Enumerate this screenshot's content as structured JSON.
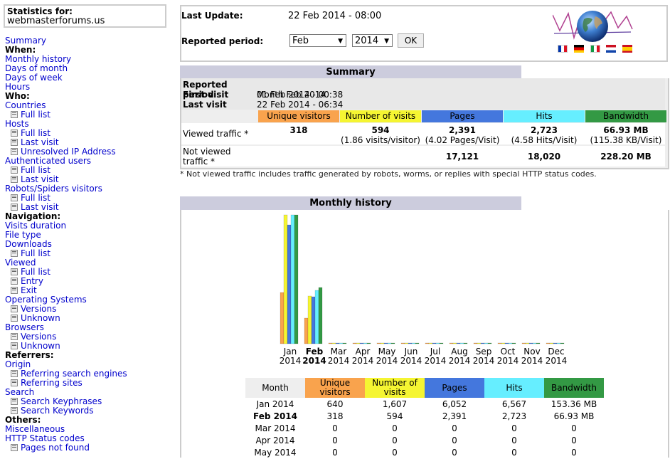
{
  "menu": {
    "stats_title": "Statistics for:",
    "site": "webmasterforums.us",
    "items": [
      {
        "type": "link",
        "label": "Summary"
      },
      {
        "type": "head",
        "label": "When:"
      },
      {
        "type": "link",
        "label": "Monthly history"
      },
      {
        "type": "link",
        "label": "Days of month"
      },
      {
        "type": "link",
        "label": "Days of week"
      },
      {
        "type": "link",
        "label": "Hours"
      },
      {
        "type": "head",
        "label": "Who:"
      },
      {
        "type": "link",
        "label": "Countries"
      },
      {
        "type": "sub",
        "label": "Full list"
      },
      {
        "type": "link",
        "label": "Hosts"
      },
      {
        "type": "sub",
        "label": "Full list"
      },
      {
        "type": "sub",
        "label": "Last visit"
      },
      {
        "type": "sub",
        "label": "Unresolved IP Address"
      },
      {
        "type": "link",
        "label": "Authenticated users"
      },
      {
        "type": "sub",
        "label": "Full list"
      },
      {
        "type": "sub",
        "label": "Last visit"
      },
      {
        "type": "link",
        "label": "Robots/Spiders visitors"
      },
      {
        "type": "sub",
        "label": "Full list"
      },
      {
        "type": "sub",
        "label": "Last visit"
      },
      {
        "type": "head",
        "label": "Navigation:"
      },
      {
        "type": "link",
        "label": "Visits duration"
      },
      {
        "type": "link",
        "label": "File type"
      },
      {
        "type": "link",
        "label": "Downloads"
      },
      {
        "type": "sub",
        "label": "Full list"
      },
      {
        "type": "link",
        "label": "Viewed"
      },
      {
        "type": "sub",
        "label": "Full list"
      },
      {
        "type": "sub",
        "label": "Entry"
      },
      {
        "type": "sub",
        "label": "Exit"
      },
      {
        "type": "link",
        "label": "Operating Systems"
      },
      {
        "type": "sub",
        "label": "Versions"
      },
      {
        "type": "sub",
        "label": "Unknown"
      },
      {
        "type": "link",
        "label": "Browsers"
      },
      {
        "type": "sub",
        "label": "Versions"
      },
      {
        "type": "sub",
        "label": "Unknown"
      },
      {
        "type": "head",
        "label": "Referrers:"
      },
      {
        "type": "link",
        "label": "Origin"
      },
      {
        "type": "sub",
        "label": "Referring search engines"
      },
      {
        "type": "sub",
        "label": "Referring sites"
      },
      {
        "type": "link",
        "label": "Search"
      },
      {
        "type": "sub",
        "label": "Search Keyphrases"
      },
      {
        "type": "sub",
        "label": "Search Keywords"
      },
      {
        "type": "head",
        "label": "Others:"
      },
      {
        "type": "link",
        "label": "Miscellaneous"
      },
      {
        "type": "link",
        "label": "HTTP Status codes"
      },
      {
        "type": "sub",
        "label": "Pages not found"
      }
    ]
  },
  "top": {
    "last_update_label": "Last Update:",
    "last_update_value": "22 Feb 2014 - 08:00",
    "period_label": "Reported period:",
    "month_select": "Feb",
    "year_select": "2014",
    "ok_label": "OK",
    "flags": [
      "fr",
      "de",
      "it",
      "nl",
      "es"
    ]
  },
  "summary": {
    "title": "Summary",
    "reported_period_label": "Reported period",
    "reported_period_value": "Month Feb 2014",
    "first_visit_label": "First visit",
    "first_visit_value": "01 Feb 2014 - 00:38",
    "last_visit_label": "Last visit",
    "last_visit_value": "22 Feb 2014 - 06:34",
    "headers": [
      "Unique visitors",
      "Number of visits",
      "Pages",
      "Hits",
      "Bandwidth"
    ],
    "viewed_label": "Viewed traffic *",
    "viewed": {
      "unique": "318",
      "visits": "594",
      "visits_sub": "(1.86 visits/visitor)",
      "pages": "2,391",
      "pages_sub": "(4.02 Pages/Visit)",
      "hits": "2,723",
      "hits_sub": "(4.58 Hits/Visit)",
      "bandwidth": "66.93 MB",
      "bandwidth_sub": "(115.38 KB/Visit)"
    },
    "not_viewed_label": "Not viewed traffic *",
    "not_viewed": {
      "pages": "17,121",
      "hits": "18,020",
      "bandwidth": "228.20 MB"
    },
    "footnote": "* Not viewed traffic includes traffic generated by robots, worms, or replies with special HTTP status codes."
  },
  "colors": {
    "unique": "#f9a34d",
    "visits": "#f5f532",
    "pages": "#4477dd",
    "hits": "#66eeff",
    "bandwidth": "#339944",
    "section": "#ccccdd"
  },
  "monthly": {
    "title": "Monthly history",
    "headers": [
      "Month",
      "Unique visitors",
      "Number of visits",
      "Pages",
      "Hits",
      "Bandwidth"
    ],
    "rows": [
      [
        "Jan 2014",
        "640",
        "1,607",
        "6,052",
        "6,567",
        "153.36 MB"
      ],
      [
        "Feb 2014",
        "318",
        "594",
        "2,391",
        "2,723",
        "66.93 MB"
      ],
      [
        "Mar 2014",
        "0",
        "0",
        "0",
        "0",
        "0"
      ],
      [
        "Apr 2014",
        "0",
        "0",
        "0",
        "0",
        "0"
      ],
      [
        "May 2014",
        "0",
        "0",
        "0",
        "0",
        "0"
      ]
    ]
  },
  "chart_data": {
    "type": "bar",
    "categories": [
      "Jan 2014",
      "Feb 2014",
      "Mar 2014",
      "Apr 2014",
      "May 2014",
      "Jun 2014",
      "Jul 2014",
      "Aug 2014",
      "Sep 2014",
      "Oct 2014",
      "Nov 2014",
      "Dec 2014"
    ],
    "x_labels": [
      [
        "Jan",
        "2014"
      ],
      [
        "Feb",
        "2014"
      ],
      [
        "Mar",
        "2014"
      ],
      [
        "Apr",
        "2014"
      ],
      [
        "May",
        "2014"
      ],
      [
        "Jun",
        "2014"
      ],
      [
        "Jul",
        "2014"
      ],
      [
        "Aug",
        "2014"
      ],
      [
        "Sep",
        "2014"
      ],
      [
        "Oct",
        "2014"
      ],
      [
        "Nov",
        "2014"
      ],
      [
        "Dec",
        "2014"
      ]
    ],
    "current_index": 1,
    "series": [
      {
        "name": "Unique visitors",
        "values": [
          640,
          318,
          0,
          0,
          0,
          0,
          0,
          0,
          0,
          0,
          0,
          0
        ]
      },
      {
        "name": "Number of visits",
        "values": [
          1607,
          594,
          0,
          0,
          0,
          0,
          0,
          0,
          0,
          0,
          0,
          0
        ]
      },
      {
        "name": "Pages",
        "values": [
          6052,
          2391,
          0,
          0,
          0,
          0,
          0,
          0,
          0,
          0,
          0,
          0
        ]
      },
      {
        "name": "Hits",
        "values": [
          6567,
          2723,
          0,
          0,
          0,
          0,
          0,
          0,
          0,
          0,
          0,
          0
        ]
      },
      {
        "name": "Bandwidth",
        "values": [
          153.36,
          66.93,
          0,
          0,
          0,
          0,
          0,
          0,
          0,
          0,
          0,
          0
        ]
      }
    ]
  }
}
